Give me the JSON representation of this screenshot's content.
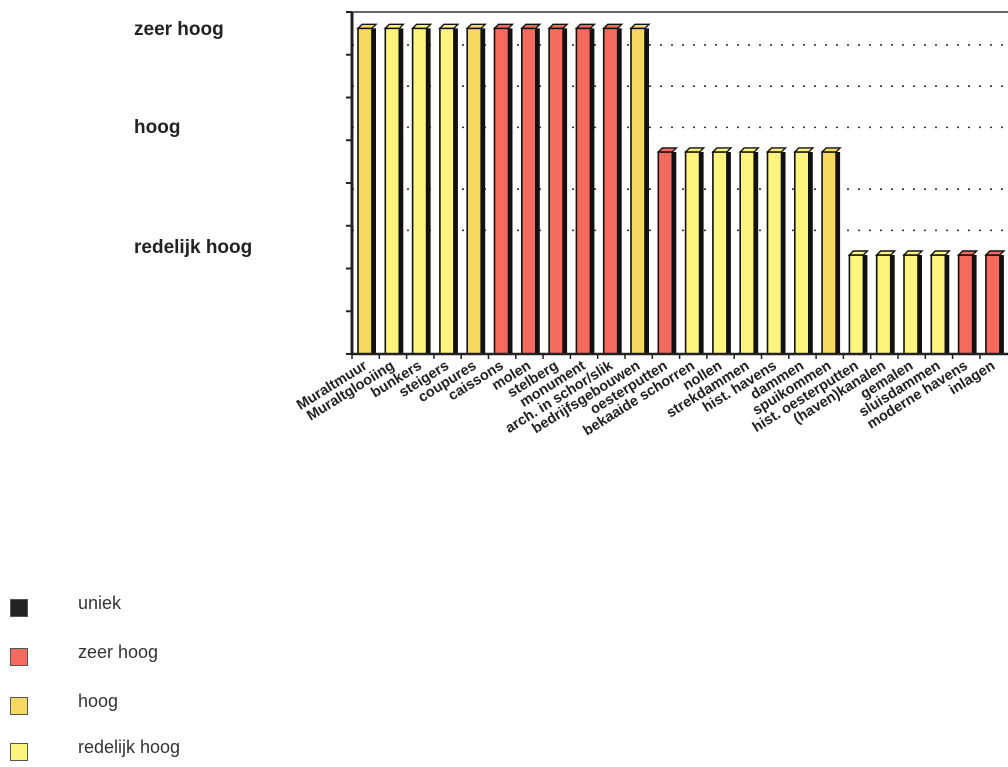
{
  "chart_data": {
    "type": "bar",
    "title": "",
    "y_levels": [
      "zeer hoog",
      "hoog",
      "redelijk hoog"
    ],
    "categories": [
      "Muraltmuur",
      "Muraltglooiing",
      "bunkers",
      "steigers",
      "coupures",
      "caissons",
      "molen",
      "stelberg",
      "monument",
      "arch. in schor/slik",
      "bedrijfsgebouwen",
      "oesterputten",
      "bekaaide schorren",
      "nollen",
      "strekdammen",
      "hist. havens",
      "dammen",
      "spuikommen",
      "hist. oesterputten",
      "(haven)kanalen",
      "gemalen",
      "sluisdammen",
      "moderne havens",
      "inlagen"
    ],
    "values": [
      8,
      8,
      8,
      8,
      8,
      8,
      8,
      8,
      8,
      8,
      8,
      5,
      5,
      5,
      5,
      5,
      5,
      5,
      2.5,
      2.5,
      2.5,
      2.5,
      2.5,
      2.5
    ],
    "classes": [
      "hoog",
      "redelijk hoog",
      "redelijk hoog",
      "redelijk hoog",
      "hoog",
      "zeer hoog",
      "zeer hoog",
      "zeer hoog",
      "zeer hoog",
      "zeer hoog",
      "hoog",
      "zeer hoog",
      "redelijk hoog",
      "redelijk hoog",
      "redelijk hoog",
      "redelijk hoog",
      "redelijk hoog",
      "hoog",
      "redelijk hoog",
      "redelijk hoog",
      "redelijk hoog",
      "redelijk hoog",
      "zeer hoog",
      "zeer hoog"
    ],
    "ylim": [
      0,
      8.3
    ],
    "legend": [
      {
        "label": "uniek",
        "color": "#222222"
      },
      {
        "label": "zeer hoog",
        "color": "#f46a5c"
      },
      {
        "label": "hoog",
        "color": "#f7d860"
      },
      {
        "label": "redelijk hoog",
        "color": "#fcf47c"
      }
    ]
  }
}
